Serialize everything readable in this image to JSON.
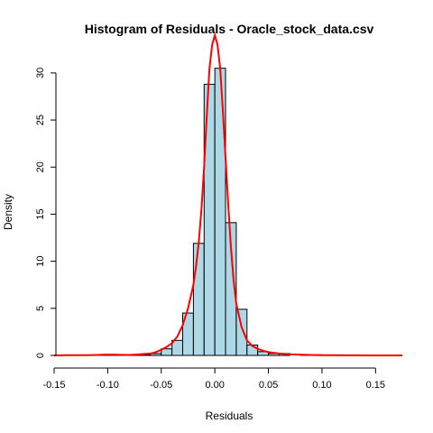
{
  "chart_data": {
    "type": "bar",
    "title": "Histogram of Residuals - Oracle_stock_data.csv",
    "xlabel": "Residuals",
    "ylabel": "Density",
    "xlim": [
      -0.15,
      0.175
    ],
    "ylim": [
      0,
      32
    ],
    "x_ticks": [
      -0.15,
      -0.1,
      -0.05,
      0.0,
      0.05,
      0.1,
      0.15
    ],
    "x_tick_labels": [
      "-0.15",
      "-0.10",
      "-0.05",
      "0.00",
      "0.05",
      "0.10",
      "0.15"
    ],
    "y_ticks": [
      0,
      5,
      10,
      15,
      20,
      25,
      30
    ],
    "y_tick_labels": [
      "0",
      "5",
      "10",
      "15",
      "20",
      "25",
      "30"
    ],
    "bin_width": 0.01,
    "bins": [
      {
        "x0": -0.14,
        "x1": -0.13,
        "density": 0.04
      },
      {
        "x0": -0.13,
        "x1": -0.12,
        "density": 0.04
      },
      {
        "x0": -0.11,
        "x1": -0.1,
        "density": 0.07
      },
      {
        "x0": -0.1,
        "x1": -0.09,
        "density": 0.07
      },
      {
        "x0": -0.09,
        "x1": -0.08,
        "density": 0.07
      },
      {
        "x0": -0.08,
        "x1": -0.07,
        "density": 0.04
      },
      {
        "x0": -0.07,
        "x1": -0.06,
        "density": 0.1
      },
      {
        "x0": -0.06,
        "x1": -0.05,
        "density": 0.2
      },
      {
        "x0": -0.05,
        "x1": -0.04,
        "density": 0.7
      },
      {
        "x0": -0.04,
        "x1": -0.03,
        "density": 1.6
      },
      {
        "x0": -0.03,
        "x1": -0.02,
        "density": 4.5
      },
      {
        "x0": -0.02,
        "x1": -0.01,
        "density": 11.9
      },
      {
        "x0": -0.01,
        "x1": 0.0,
        "density": 28.8
      },
      {
        "x0": 0.0,
        "x1": 0.01,
        "density": 30.5
      },
      {
        "x0": 0.01,
        "x1": 0.02,
        "density": 14.1
      },
      {
        "x0": 0.02,
        "x1": 0.03,
        "density": 4.9
      },
      {
        "x0": 0.03,
        "x1": 0.04,
        "density": 1.1
      },
      {
        "x0": 0.04,
        "x1": 0.05,
        "density": 0.4
      },
      {
        "x0": 0.05,
        "x1": 0.06,
        "density": 0.2
      },
      {
        "x0": 0.06,
        "x1": 0.07,
        "density": 0.2
      },
      {
        "x0": 0.08,
        "x1": 0.09,
        "density": 0.07
      },
      {
        "x0": 0.09,
        "x1": 0.1,
        "density": 0.07
      }
    ],
    "density_curve": {
      "x": [
        -0.15,
        -0.14,
        -0.13,
        -0.12,
        -0.11,
        -0.1,
        -0.09,
        -0.08,
        -0.07,
        -0.06,
        -0.055,
        -0.05,
        -0.045,
        -0.04,
        -0.035,
        -0.03,
        -0.025,
        -0.02,
        -0.0175,
        -0.015,
        -0.0125,
        -0.01,
        -0.0075,
        -0.005,
        -0.0025,
        0.0,
        0.0025,
        0.005,
        0.0075,
        0.01,
        0.0125,
        0.015,
        0.0175,
        0.02,
        0.025,
        0.03,
        0.035,
        0.04,
        0.045,
        0.05,
        0.06,
        0.07,
        0.08,
        0.09,
        0.1,
        0.11,
        0.12,
        0.13,
        0.14,
        0.15,
        0.16,
        0.175
      ],
      "y": [
        0.0,
        0.02,
        0.03,
        0.02,
        0.05,
        0.1,
        0.07,
        0.05,
        0.12,
        0.2,
        0.35,
        0.6,
        0.9,
        1.3,
        2.0,
        3.2,
        5.0,
        7.5,
        9.5,
        12.0,
        15.5,
        20.0,
        25.5,
        30.5,
        33.0,
        34.0,
        33.0,
        30.5,
        26.0,
        21.0,
        16.0,
        11.5,
        8.0,
        5.5,
        3.0,
        1.6,
        1.0,
        0.7,
        0.5,
        0.35,
        0.2,
        0.12,
        0.08,
        0.05,
        0.03,
        0.02,
        0.01,
        0.01,
        0.0,
        0.0,
        0.0,
        0.0
      ]
    },
    "bar_fill": "#add8e6",
    "bar_stroke": "#000000",
    "curve_color": "#ff0000",
    "grid": false,
    "legend": "none"
  }
}
